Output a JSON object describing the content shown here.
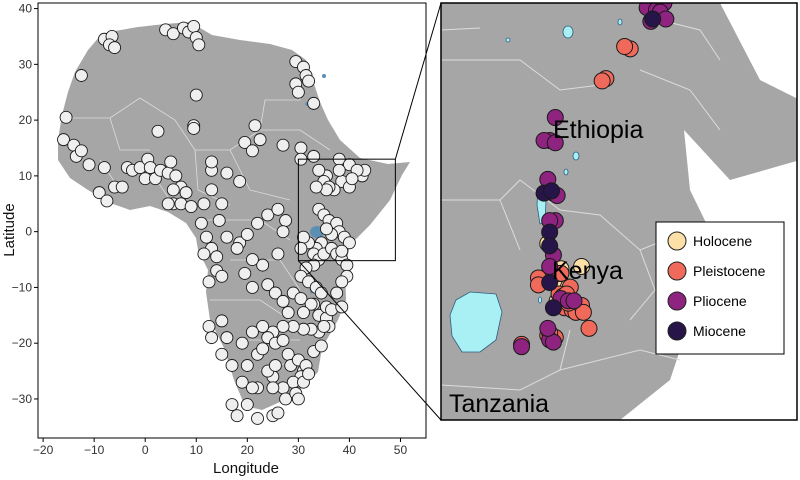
{
  "chart_data": [
    {
      "type": "scatter",
      "xlabel": "Longitude",
      "ylabel": "Latitude",
      "xlim": [
        -21,
        55
      ],
      "ylim": [
        -37,
        41
      ],
      "xticks": [
        -20,
        -10,
        0,
        10,
        20,
        30,
        40,
        50
      ],
      "yticks": [
        -30,
        -20,
        -10,
        0,
        10,
        20,
        30,
        40
      ],
      "grid": false,
      "inset_box": {
        "lon": [
          30,
          49
        ],
        "lat": [
          -5.2,
          13
        ]
      },
      "series": [
        {
          "points": [
            [
              -8,
              34.5
            ],
            [
              -6.5,
              35
            ],
            [
              -7,
              33.5
            ],
            [
              -6,
              33
            ],
            [
              -12.5,
              28
            ],
            [
              4,
              36.2
            ],
            [
              5.5,
              35.5
            ],
            [
              7.5,
              36.5
            ],
            [
              8.5,
              35.8
            ],
            [
              9.5,
              36.8
            ],
            [
              10,
              34.8
            ],
            [
              10.5,
              33.5
            ],
            [
              29.5,
              30.5
            ],
            [
              31,
              29.5
            ],
            [
              31.5,
              28
            ],
            [
              32,
              27
            ],
            [
              33,
              23
            ],
            [
              29.5,
              26.5
            ],
            [
              30,
              25
            ],
            [
              10,
              24.5
            ],
            [
              9.5,
              19
            ],
            [
              9.5,
              18.5
            ],
            [
              2.5,
              18
            ],
            [
              -15.5,
              20.5
            ],
            [
              -16,
              16.5
            ],
            [
              21.5,
              19
            ],
            [
              19.5,
              16
            ],
            [
              21,
              14.5
            ],
            [
              22.5,
              16.5
            ],
            [
              27,
              15.5
            ],
            [
              30.5,
              15
            ],
            [
              33,
              13.5
            ],
            [
              30.5,
              13
            ],
            [
              38,
              13
            ],
            [
              40,
              12
            ],
            [
              38.5,
              9
            ],
            [
              40,
              8
            ],
            [
              42.5,
              10
            ],
            [
              43,
              11
            ],
            [
              41.5,
              11
            ],
            [
              40.5,
              9.5
            ],
            [
              37,
              7.5
            ],
            [
              35.5,
              10
            ],
            [
              35,
              9
            ],
            [
              36,
              8
            ],
            [
              38,
              11
            ],
            [
              34,
              11
            ],
            [
              35.5,
              7.5
            ],
            [
              33.5,
              8
            ],
            [
              34,
              4
            ],
            [
              35,
              3
            ],
            [
              36,
              2
            ],
            [
              37.5,
              1.5
            ],
            [
              38,
              0
            ],
            [
              39,
              -1
            ],
            [
              40,
              -2
            ],
            [
              36.5,
              -0.5
            ],
            [
              35.5,
              0.5
            ],
            [
              34.5,
              -2
            ],
            [
              33.5,
              -3
            ],
            [
              32,
              -2
            ],
            [
              31,
              -1
            ],
            [
              30.5,
              -3
            ],
            [
              33,
              -4
            ],
            [
              34,
              -5
            ],
            [
              35,
              -4
            ],
            [
              36.5,
              -3
            ],
            [
              37.5,
              -4
            ],
            [
              38.5,
              -5
            ],
            [
              39.5,
              -6
            ],
            [
              38.5,
              -3.5
            ],
            [
              33,
              -6
            ],
            [
              31.5,
              -6.5
            ],
            [
              30.5,
              -8
            ],
            [
              32,
              -9
            ],
            [
              -14,
              15.5
            ],
            [
              -13.5,
              13.5
            ],
            [
              -12.5,
              14.5
            ],
            [
              -11,
              12
            ],
            [
              -8,
              11.5
            ],
            [
              -9,
              7
            ],
            [
              -7.5,
              5.5
            ],
            [
              -6,
              8
            ],
            [
              -4.5,
              8
            ],
            [
              -3.5,
              11.5
            ],
            [
              -2.5,
              11
            ],
            [
              -1,
              11.5
            ],
            [
              0.5,
              13
            ],
            [
              1,
              11.5
            ],
            [
              0,
              9.5
            ],
            [
              2,
              9.5
            ],
            [
              3,
              11
            ],
            [
              4.5,
              10.5
            ],
            [
              5,
              12.5
            ],
            [
              6,
              10
            ],
            [
              7,
              8
            ],
            [
              8,
              7
            ],
            [
              5.5,
              5
            ],
            [
              5.5,
              7.5
            ],
            [
              4.5,
              5
            ],
            [
              7,
              5
            ],
            [
              9,
              4.5
            ],
            [
              11.5,
              5
            ],
            [
              13,
              7.5
            ],
            [
              13,
              11
            ],
            [
              13,
              12.5
            ],
            [
              16,
              10.5
            ],
            [
              18.5,
              9
            ],
            [
              15,
              5
            ],
            [
              14.5,
              2
            ],
            [
              11,
              1.5
            ],
            [
              12,
              -1
            ],
            [
              13,
              -3
            ],
            [
              14,
              -4.5
            ],
            [
              14,
              -7
            ],
            [
              15,
              -8
            ],
            [
              12.5,
              -9
            ],
            [
              11.5,
              -4
            ],
            [
              16,
              -1
            ],
            [
              18.5,
              -2
            ],
            [
              20,
              -0.5
            ],
            [
              22,
              1.5
            ],
            [
              24,
              3
            ],
            [
              26,
              4
            ],
            [
              27.5,
              2
            ],
            [
              27,
              0
            ],
            [
              26,
              -4
            ],
            [
              23,
              -6
            ],
            [
              21,
              -5
            ],
            [
              18,
              -3
            ],
            [
              19.5,
              -7.5
            ],
            [
              21,
              -10
            ],
            [
              24,
              -9.5
            ],
            [
              25.5,
              -11
            ],
            [
              27,
              -12.5
            ],
            [
              28,
              -14.5
            ],
            [
              29,
              -11
            ],
            [
              30.5,
              -12
            ],
            [
              33,
              -13
            ],
            [
              34,
              -15
            ],
            [
              35.5,
              -15.5
            ],
            [
              36,
              -17
            ],
            [
              34,
              -18
            ],
            [
              32.5,
              -17.5
            ],
            [
              31,
              -17.5
            ],
            [
              29,
              -17
            ],
            [
              27,
              -17
            ],
            [
              25,
              -18
            ],
            [
              23,
              -17
            ],
            [
              21,
              -18
            ],
            [
              19,
              -20
            ],
            [
              16,
              -19
            ],
            [
              15,
              -16
            ],
            [
              12.5,
              -17
            ],
            [
              13,
              -19
            ],
            [
              15,
              -22
            ],
            [
              17,
              -24
            ],
            [
              20,
              -24
            ],
            [
              22,
              -22
            ],
            [
              23,
              -21
            ],
            [
              24,
              -19
            ],
            [
              25.5,
              -20
            ],
            [
              27,
              -19.5
            ],
            [
              28,
              -22
            ],
            [
              28.5,
              -24
            ],
            [
              30,
              -23
            ],
            [
              31,
              -25
            ],
            [
              30.5,
              -26
            ],
            [
              29,
              -27
            ],
            [
              27,
              -28
            ],
            [
              25,
              -26
            ],
            [
              25,
              -28
            ],
            [
              24,
              -25
            ],
            [
              22,
              -28
            ],
            [
              19,
              -27
            ],
            [
              18,
              -33
            ],
            [
              17,
              -31
            ],
            [
              20,
              -31
            ],
            [
              22,
              -33.5
            ],
            [
              25,
              -33
            ],
            [
              26,
              -32.5
            ],
            [
              27.5,
              -30
            ],
            [
              29.5,
              -29
            ],
            [
              30,
              -30
            ],
            [
              31,
              -27
            ],
            [
              31.5,
              -24
            ],
            [
              32,
              -25.5
            ],
            [
              33,
              -21.5
            ],
            [
              34.5,
              -20.5
            ],
            [
              35,
              -17
            ],
            [
              35.5,
              -13.5
            ],
            [
              33.5,
              -10
            ],
            [
              32.5,
              -13
            ],
            [
              31,
              -14.5
            ],
            [
              34.5,
              -11
            ],
            [
              36.5,
              -14
            ],
            [
              38.5,
              -13.5
            ],
            [
              39.5,
              -8
            ],
            [
              38.5,
              -9
            ],
            [
              37.5,
              -11
            ],
            [
              25.5,
              -24
            ],
            [
              21,
              -28
            ]
          ]
        }
      ]
    },
    {
      "type": "scatter",
      "labels": [
        "Ethiopia",
        "Kenya",
        "Tanzania"
      ],
      "legend": {
        "position": "right",
        "entries": [
          {
            "label": "Holocene",
            "color": "#fde0a8"
          },
          {
            "label": "Pleistocene",
            "color": "#f06a5b"
          },
          {
            "label": "Pliocene",
            "color": "#8e2480"
          },
          {
            "label": "Miocene",
            "color": "#271448"
          }
        ]
      },
      "xlim": [
        30,
        49
      ],
      "ylim": [
        -5.2,
        13
      ],
      "series": [
        {
          "name": "Holocene",
          "color": "#fde0a8",
          "points": [
            [
              35.7,
              2.5
            ],
            [
              36.3,
              1.0
            ],
            [
              36.4,
              1.4
            ],
            [
              37.5,
              1.5
            ],
            [
              36.3,
              0.5
            ],
            [
              36.2,
              0.0
            ],
            [
              36.8,
              0.6
            ]
          ]
        },
        {
          "name": "Pleistocene",
          "color": "#f06a5b",
          "points": [
            [
              40.1,
              11.0
            ],
            [
              39.8,
              11.1
            ],
            [
              38.8,
              9.7
            ],
            [
              38.6,
              9.6
            ],
            [
              35.2,
              1.0
            ],
            [
              35.2,
              0.7
            ],
            [
              36.2,
              1.2
            ],
            [
              36.4,
              1.2
            ],
            [
              36.9,
              0.6
            ],
            [
              36.3,
              0.3
            ],
            [
              36.5,
              0.2
            ],
            [
              36.6,
              -0.3
            ],
            [
              37.0,
              -0.4
            ],
            [
              37.2,
              -0.5
            ],
            [
              37.5,
              -0.2
            ],
            [
              37.6,
              -0.5
            ],
            [
              35.7,
              -1.5
            ],
            [
              36.1,
              -1.6
            ],
            [
              35.8,
              -1.4
            ],
            [
              37.9,
              -1.2
            ],
            [
              34.3,
              -1.9
            ],
            [
              36.7,
              0.3
            ],
            [
              36.8,
              -0.1
            ]
          ]
        },
        {
          "name": "Pliocene",
          "color": "#8e2480",
          "points": [
            [
              41.4,
              13.5
            ],
            [
              41.9,
              13.7
            ],
            [
              42.1,
              13.8
            ],
            [
              41.6,
              13.2
            ],
            [
              41.0,
              12.8
            ],
            [
              41.5,
              12.7
            ],
            [
              41.9,
              13.0
            ],
            [
              41.7,
              12.6
            ],
            [
              41.2,
              12.2
            ],
            [
              42.0,
              12.3
            ],
            [
              36.1,
              8.0
            ],
            [
              35.8,
              7.0
            ],
            [
              35.5,
              7.0
            ],
            [
              35.7,
              5.3
            ],
            [
              36.1,
              6.9
            ],
            [
              36.0,
              4.7
            ],
            [
              36.2,
              4.6
            ],
            [
              36.1,
              3.5
            ],
            [
              35.8,
              3.5
            ],
            [
              36.0,
              2.0
            ],
            [
              35.8,
              1.5
            ],
            [
              36.4,
              0.1
            ],
            [
              36.8,
              0.0
            ],
            [
              37.1,
              0.0
            ],
            [
              35.8,
              -1.7
            ],
            [
              36.0,
              -1.8
            ],
            [
              35.7,
              -1.2
            ],
            [
              34.3,
              -2.0
            ]
          ]
        },
        {
          "name": "Miocene",
          "color": "#271448",
          "points": [
            [
              41.3,
              12.3
            ],
            [
              35.5,
              4.7
            ],
            [
              35.9,
              4.8
            ],
            [
              35.8,
              3.0
            ],
            [
              35.8,
              2.4
            ],
            [
              36.0,
              -0.3
            ],
            [
              35.8,
              0.8
            ]
          ]
        }
      ]
    }
  ]
}
